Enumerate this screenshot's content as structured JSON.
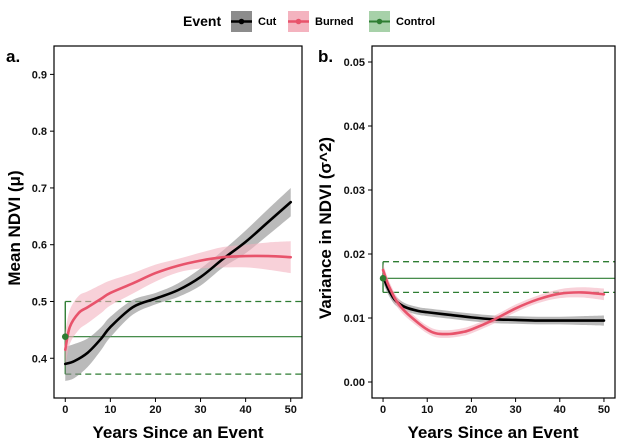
{
  "legend": {
    "title": "Event",
    "entries": [
      {
        "label": "Cut",
        "color": "#000000",
        "fill": "#8c8c8c"
      },
      {
        "label": "Burned",
        "color": "#e8536b",
        "fill": "#f4b3bf"
      },
      {
        "label": "Control",
        "color": "#2e7d32",
        "fill": "#a7d1a9"
      }
    ]
  },
  "chart_data": [
    {
      "type": "line",
      "panel_label": "a.",
      "xlabel": "Years Since an Event",
      "ylabel": "Mean NDVI (μ)",
      "xlim": [
        -2.5,
        52.5
      ],
      "ylim": [
        0.33,
        0.95
      ],
      "xticks": [
        0,
        10,
        20,
        30,
        40,
        50
      ],
      "yticks": [
        0.4,
        0.5,
        0.6,
        0.7,
        0.8,
        0.9
      ],
      "ytick_labels": [
        "0.4",
        "0.5",
        "0.6",
        "0.7",
        "0.8",
        "0.9"
      ],
      "grid": false,
      "series": [
        {
          "name": "Cut",
          "x": [
            0,
            2,
            5,
            8,
            10,
            15,
            20,
            25,
            30,
            35,
            40,
            45,
            50
          ],
          "y": [
            0.39,
            0.395,
            0.41,
            0.435,
            0.455,
            0.49,
            0.505,
            0.52,
            0.543,
            0.575,
            0.605,
            0.64,
            0.675
          ],
          "ci_width": [
            0.03,
            0.03,
            0.025,
            0.02,
            0.018,
            0.013,
            0.01,
            0.012,
            0.015,
            0.015,
            0.02,
            0.023,
            0.025
          ]
        },
        {
          "name": "Burned",
          "x": [
            0,
            1,
            3,
            5,
            8,
            10,
            15,
            20,
            25,
            30,
            35,
            40,
            45,
            50
          ],
          "y": [
            0.415,
            0.455,
            0.48,
            0.49,
            0.505,
            0.515,
            0.532,
            0.55,
            0.563,
            0.572,
            0.578,
            0.58,
            0.58,
            0.578
          ],
          "ci_width": [
            0.03,
            0.03,
            0.03,
            0.028,
            0.025,
            0.022,
            0.018,
            0.015,
            0.012,
            0.014,
            0.018,
            0.02,
            0.024,
            0.028
          ]
        }
      ],
      "control": {
        "point": [
          0,
          0.438
        ],
        "value": 0.438,
        "ci": [
          0.372,
          0.5
        ]
      }
    },
    {
      "type": "line",
      "panel_label": "b.",
      "xlabel": "Years Since an Event",
      "ylabel": "Variance in NDVI (σ^2)",
      "xlim": [
        -2.5,
        52.5
      ],
      "ylim": [
        -0.0025,
        0.0525
      ],
      "xticks": [
        0,
        10,
        20,
        30,
        40,
        50
      ],
      "yticks": [
        0,
        0.01,
        0.02,
        0.03,
        0.04,
        0.05
      ],
      "ytick_labels": [
        "0.00",
        "0.01",
        "0.02",
        "0.03",
        "0.04",
        "0.05"
      ],
      "grid": false,
      "series": [
        {
          "name": "Cut",
          "x": [
            0,
            1,
            2,
            3,
            5,
            8,
            10,
            15,
            20,
            25,
            30,
            35,
            40,
            45,
            50
          ],
          "y": [
            0.0165,
            0.0148,
            0.0135,
            0.0126,
            0.0117,
            0.0111,
            0.0109,
            0.0105,
            0.0101,
            0.0098,
            0.0097,
            0.0096,
            0.0096,
            0.0096,
            0.0096
          ],
          "ci_width": [
            0.001,
            0.0009,
            0.0008,
            0.0007,
            0.0006,
            0.0006,
            0.0006,
            0.0006,
            0.0006,
            0.0006,
            0.0006,
            0.0006,
            0.0006,
            0.0007,
            0.0008
          ]
        },
        {
          "name": "Burned",
          "x": [
            0,
            1,
            2,
            3,
            5,
            8,
            10,
            12,
            15,
            18,
            20,
            25,
            30,
            35,
            40,
            45,
            50
          ],
          "y": [
            0.0175,
            0.0155,
            0.014,
            0.0127,
            0.011,
            0.0092,
            0.0082,
            0.0076,
            0.0075,
            0.0078,
            0.0082,
            0.0097,
            0.0115,
            0.0129,
            0.0138,
            0.014,
            0.0137
          ],
          "ci_width": [
            0.001,
            0.0009,
            0.0008,
            0.0008,
            0.0007,
            0.0006,
            0.0006,
            0.0006,
            0.0006,
            0.0006,
            0.0006,
            0.0006,
            0.0006,
            0.0006,
            0.0007,
            0.0008,
            0.0009
          ]
        }
      ],
      "control": {
        "point": [
          0,
          0.0162
        ],
        "value": 0.0162,
        "ci": [
          0.014,
          0.0188
        ]
      }
    }
  ]
}
